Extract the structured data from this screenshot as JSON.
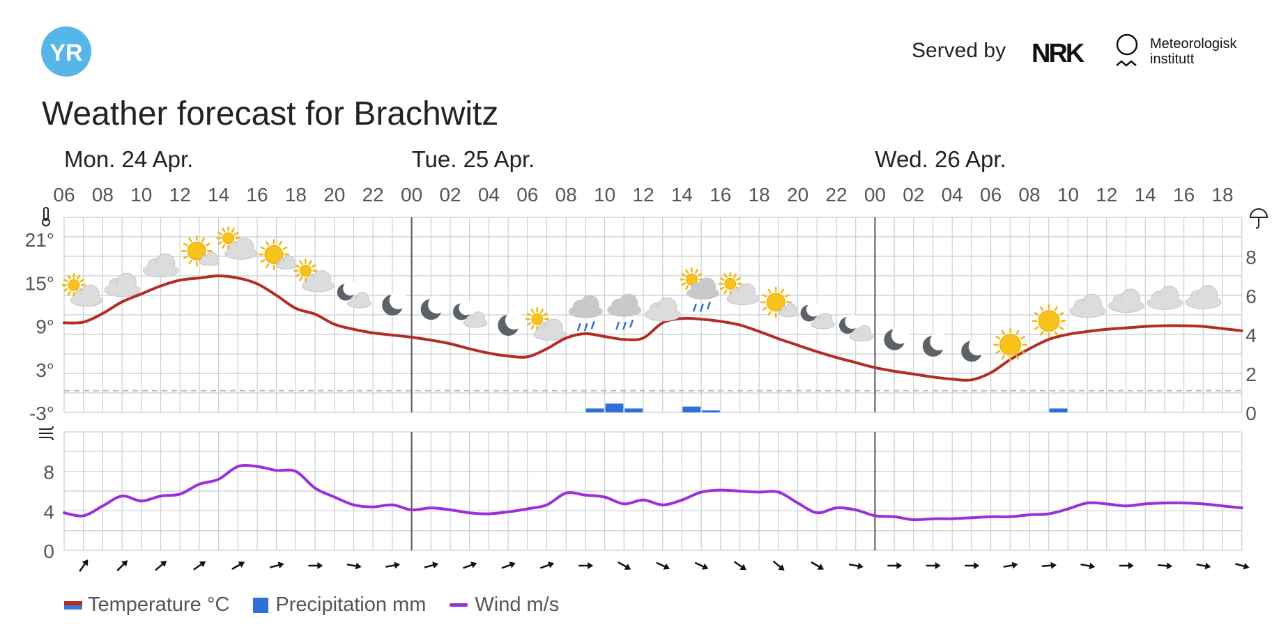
{
  "header": {
    "logo_text": "YR",
    "served_by": "Served by",
    "nrk_logo": "NRK",
    "met_logo_line1": "Meteorologisk",
    "met_logo_line2": "institutt"
  },
  "title": "Weather forecast for Brachwitz",
  "legend": {
    "temperature": "Temperature °C",
    "precipitation": "Precipitation mm",
    "wind": "Wind m/s"
  },
  "colors": {
    "temperature": "#b22d25",
    "temperature_alt": "#3a78d8",
    "precipitation": "#2f6fd8",
    "wind": "#9b30d9",
    "grid": "#c8ced6",
    "brand": "#56b6e8"
  },
  "chart_data": [
    {
      "type": "line",
      "days": [
        {
          "label": "Mon. 24 Apr.",
          "start_hour": 0
        },
        {
          "label": "Tue. 25 Apr.",
          "start_hour": 18
        },
        {
          "label": "Wed. 26 Apr.",
          "start_hour": 42
        }
      ],
      "x_tick_labels": [
        "06",
        "08",
        "10",
        "12",
        "14",
        "16",
        "18",
        "20",
        "22",
        "00",
        "02",
        "04",
        "06",
        "08",
        "10",
        "12",
        "14",
        "16",
        "18",
        "20",
        "22",
        "00",
        "02",
        "04",
        "06",
        "08",
        "10",
        "12",
        "14",
        "16",
        "18"
      ],
      "x_hours": [
        0,
        1,
        2,
        3,
        4,
        5,
        6,
        7,
        8,
        9,
        10,
        11,
        12,
        13,
        14,
        15,
        16,
        17,
        18,
        19,
        20,
        21,
        22,
        23,
        24,
        25,
        26,
        27,
        28,
        29,
        30,
        31,
        32,
        33,
        34,
        35,
        36,
        37,
        38,
        39,
        40,
        41,
        42,
        43,
        44,
        45,
        46,
        47,
        48,
        49,
        50,
        51,
        52,
        53,
        54,
        55,
        56,
        57,
        58,
        59,
        60,
        61
      ],
      "temperature": {
        "name": "Temperature °C",
        "ylim": [
          -3,
          24
        ],
        "y_ticks": [
          "-3°",
          "3°",
          "9°",
          "15°",
          "21°"
        ],
        "values": [
          9.4,
          9.5,
          10.7,
          12.3,
          13.4,
          14.5,
          15.3,
          15.6,
          15.9,
          15.6,
          14.8,
          13.2,
          11.4,
          10.6,
          9.2,
          8.5,
          8.0,
          7.7,
          7.4,
          7.0,
          6.5,
          5.8,
          5.2,
          4.8,
          4.7,
          5.8,
          7.3,
          7.9,
          7.5,
          7.1,
          7.3,
          9.4,
          10.0,
          9.9,
          9.6,
          9.1,
          8.2,
          7.2,
          6.3,
          5.4,
          4.6,
          3.9,
          3.2,
          2.7,
          2.3,
          1.9,
          1.6,
          1.5,
          2.5,
          4.3,
          5.8,
          7.1,
          7.8,
          8.2,
          8.5,
          8.7,
          8.9,
          9.0,
          9.0,
          8.9,
          8.6,
          8.3
        ]
      },
      "precipitation": {
        "name": "Precipitation mm",
        "right_axis_ticks": [
          "0",
          "2",
          "4",
          "6",
          "8"
        ],
        "ylim": [
          0,
          10
        ],
        "bars": [
          {
            "hour": 27,
            "value": 0.2
          },
          {
            "hour": 28,
            "value": 0.45
          },
          {
            "hour": 29,
            "value": 0.2
          },
          {
            "hour": 32,
            "value": 0.3
          },
          {
            "hour": 33,
            "value": 0.1
          },
          {
            "hour": 51,
            "value": 0.2
          }
        ]
      },
      "symbols": [
        {
          "hour": 0,
          "icon": "partly-cloudy-day"
        },
        {
          "hour": 2,
          "icon": "cloudy"
        },
        {
          "hour": 4,
          "icon": "cloudy"
        },
        {
          "hour": 6,
          "icon": "fair-day"
        },
        {
          "hour": 8,
          "icon": "partly-cloudy-day"
        },
        {
          "hour": 10,
          "icon": "fair-day"
        },
        {
          "hour": 12,
          "icon": "partly-cloudy-day"
        },
        {
          "hour": 14,
          "icon": "partly-cloudy-night"
        },
        {
          "hour": 16,
          "icon": "clear-night"
        },
        {
          "hour": 18,
          "icon": "clear-night"
        },
        {
          "hour": 20,
          "icon": "partly-cloudy-night"
        },
        {
          "hour": 22,
          "icon": "clear-night"
        },
        {
          "hour": 24,
          "icon": "partly-cloudy-day"
        },
        {
          "hour": 26,
          "icon": "light-rain"
        },
        {
          "hour": 28,
          "icon": "light-rain"
        },
        {
          "hour": 30,
          "icon": "cloudy"
        },
        {
          "hour": 32,
          "icon": "rain-showers-day"
        },
        {
          "hour": 34,
          "icon": "partly-cloudy-day"
        },
        {
          "hour": 36,
          "icon": "fair-day"
        },
        {
          "hour": 38,
          "icon": "partly-cloudy-night"
        },
        {
          "hour": 40,
          "icon": "partly-cloudy-night"
        },
        {
          "hour": 42,
          "icon": "clear-night"
        },
        {
          "hour": 44,
          "icon": "clear-night"
        },
        {
          "hour": 46,
          "icon": "clear-night"
        },
        {
          "hour": 48,
          "icon": "clear-sky-day"
        },
        {
          "hour": 50,
          "icon": "clear-sky-day"
        },
        {
          "hour": 52,
          "icon": "cloudy"
        },
        {
          "hour": 54,
          "icon": "cloudy"
        },
        {
          "hour": 56,
          "icon": "cloudy"
        },
        {
          "hour": 58,
          "icon": "cloudy"
        }
      ]
    },
    {
      "type": "line",
      "name": "Wind m/s",
      "ylim": [
        0,
        12
      ],
      "y_ticks": [
        "0",
        "4",
        "8"
      ],
      "values": [
        3.8,
        3.5,
        4.5,
        5.5,
        5.0,
        5.5,
        5.7,
        6.7,
        7.2,
        8.5,
        8.5,
        8.1,
        8.0,
        6.3,
        5.4,
        4.6,
        4.4,
        4.6,
        4.1,
        4.3,
        4.1,
        3.8,
        3.7,
        3.9,
        4.2,
        4.6,
        5.8,
        5.6,
        5.4,
        4.7,
        5.1,
        4.6,
        5.1,
        5.9,
        6.1,
        6.0,
        5.9,
        5.9,
        4.8,
        3.8,
        4.3,
        4.1,
        3.5,
        3.4,
        3.1,
        3.2,
        3.2,
        3.3,
        3.4,
        3.4,
        3.6,
        3.7,
        4.2,
        4.8,
        4.7,
        4.5,
        4.7,
        4.8,
        4.8,
        4.7,
        4.5,
        4.3
      ],
      "arrow_hours": [
        0,
        2,
        4,
        6,
        8,
        10,
        12,
        14,
        16,
        18,
        20,
        22,
        24,
        26,
        28,
        30,
        32,
        34,
        36,
        38,
        40,
        42,
        44,
        46,
        48,
        50,
        52,
        54,
        56,
        58,
        60
      ],
      "arrow_rotation_deg": [
        -55,
        -45,
        -40,
        -35,
        -30,
        -15,
        0,
        10,
        -10,
        -15,
        -20,
        -20,
        -20,
        0,
        30,
        25,
        25,
        35,
        40,
        30,
        10,
        0,
        0,
        0,
        -10,
        -5,
        10,
        0,
        5,
        10,
        15
      ]
    }
  ]
}
